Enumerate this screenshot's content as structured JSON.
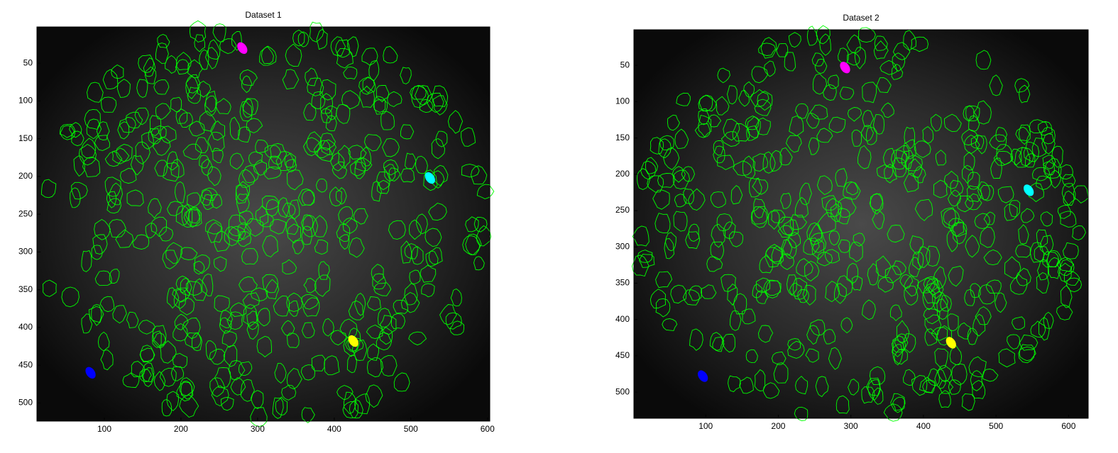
{
  "chart_data": [
    {
      "type": "image",
      "title": "Dataset 1",
      "xlim": [
        12,
        603
      ],
      "ylim": [
        2,
        524
      ],
      "xticks": [
        100,
        200,
        300,
        400,
        500,
        600
      ],
      "yticks": [
        50,
        100,
        150,
        200,
        250,
        300,
        350,
        400,
        450,
        500
      ],
      "outline_color": "#00ff00",
      "markers": [
        {
          "x": 280,
          "y": 30,
          "color": "#ff00ff"
        },
        {
          "x": 525,
          "y": 202,
          "color": "#00ffff"
        },
        {
          "x": 425,
          "y": 418,
          "color": "#ffff00"
        },
        {
          "x": 82,
          "y": 460,
          "color": "#0000ff"
        }
      ]
    },
    {
      "type": "image",
      "title": "Dataset 2",
      "xlim": [
        1,
        627
      ],
      "ylim": [
        1,
        536
      ],
      "xticks": [
        100,
        200,
        300,
        400,
        500,
        600
      ],
      "yticks": [
        50,
        100,
        150,
        200,
        250,
        300,
        350,
        400,
        450,
        500
      ],
      "outline_color": "#00ff00",
      "markers": [
        {
          "x": 292,
          "y": 53,
          "color": "#ff00ff"
        },
        {
          "x": 545,
          "y": 222,
          "color": "#00ffff"
        },
        {
          "x": 438,
          "y": 432,
          "color": "#ffff00"
        },
        {
          "x": 96,
          "y": 478,
          "color": "#0000ff"
        }
      ]
    }
  ]
}
